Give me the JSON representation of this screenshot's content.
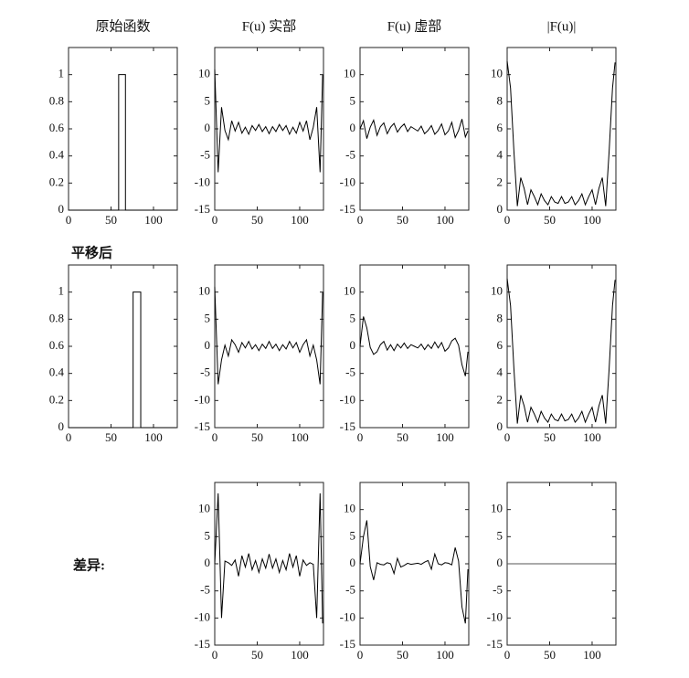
{
  "chart_data": [
    {
      "type": "line",
      "title": "原始函数",
      "x": [
        0,
        59,
        59,
        67,
        67,
        127
      ],
      "values": [
        0,
        0,
        1,
        1,
        0,
        0
      ],
      "color": "#000000",
      "xlim": [
        0,
        128
      ],
      "xticks": [
        0,
        50,
        100
      ],
      "ylim": [
        0,
        1.2
      ],
      "yticks": [
        0,
        0.2,
        0.4,
        0.6,
        0.8,
        1
      ]
    },
    {
      "type": "line",
      "title": "F(u) 实部",
      "x": [
        0,
        4,
        8,
        12,
        16,
        20,
        24,
        28,
        32,
        36,
        40,
        44,
        48,
        52,
        56,
        60,
        64,
        68,
        72,
        76,
        80,
        84,
        88,
        92,
        96,
        100,
        104,
        108,
        112,
        116,
        120,
        124,
        127
      ],
      "values": [
        11,
        -8,
        4,
        -0.3,
        -2,
        1.5,
        -0.4,
        1.2,
        -0.8,
        0.3,
        -1,
        0.6,
        -0.3,
        0.8,
        -0.5,
        0.4,
        -0.9,
        0.4,
        -0.5,
        0.8,
        -0.3,
        0.6,
        -1,
        0.3,
        -0.8,
        1.2,
        -0.4,
        1.5,
        -2,
        0.3,
        4,
        -8,
        10
      ],
      "color": "#000000",
      "xlim": [
        0,
        128
      ],
      "xticks": [
        0,
        50,
        100
      ],
      "ylim": [
        -15,
        15
      ],
      "yticks": [
        -15,
        -10,
        -5,
        0,
        5,
        10
      ]
    },
    {
      "type": "line",
      "title": "F(u) 虚部",
      "x": [
        0,
        4,
        8,
        12,
        16,
        20,
        24,
        28,
        32,
        36,
        40,
        44,
        48,
        52,
        56,
        60,
        64,
        68,
        72,
        76,
        80,
        84,
        88,
        92,
        96,
        100,
        104,
        108,
        112,
        116,
        120,
        124,
        127
      ],
      "values": [
        0,
        1.5,
        -1.8,
        0.3,
        1.6,
        -1.2,
        0.4,
        1.1,
        -0.9,
        0.3,
        1,
        -0.6,
        0.3,
        0.9,
        -0.5,
        0.4,
        0,
        -0.4,
        0.5,
        -0.9,
        -0.3,
        0.6,
        -1,
        -0.3,
        0.9,
        -1.1,
        -0.4,
        1.2,
        -1.6,
        -0.3,
        1.8,
        -1.5,
        -0.4
      ],
      "color": "#000000",
      "xlim": [
        0,
        128
      ],
      "xticks": [
        0,
        50,
        100
      ],
      "ylim": [
        -15,
        15
      ],
      "yticks": [
        -15,
        -10,
        -5,
        0,
        5,
        10
      ]
    },
    {
      "type": "line",
      "title": "|F(u)|",
      "x": [
        0,
        4,
        8,
        12,
        16,
        20,
        24,
        28,
        32,
        36,
        40,
        44,
        48,
        52,
        56,
        60,
        64,
        68,
        72,
        76,
        80,
        84,
        88,
        92,
        96,
        100,
        104,
        108,
        112,
        116,
        120,
        124,
        127
      ],
      "values": [
        11,
        9,
        4.3,
        0.3,
        2.4,
        1.6,
        0.4,
        1.5,
        1,
        0.4,
        1.2,
        0.7,
        0.4,
        1,
        0.6,
        0.5,
        1,
        0.5,
        0.6,
        1,
        0.4,
        0.7,
        1.2,
        0.4,
        1,
        1.5,
        0.4,
        1.6,
        2.4,
        0.3,
        4.3,
        9,
        10.9
      ],
      "color": "#000000",
      "xlim": [
        0,
        128
      ],
      "xticks": [
        0,
        50,
        100
      ],
      "ylim": [
        0,
        12
      ],
      "yticks": [
        0,
        2,
        4,
        6,
        8,
        10
      ]
    },
    {
      "type": "line",
      "x": [
        0,
        76,
        76,
        85,
        85,
        127
      ],
      "values": [
        0,
        0,
        1,
        1,
        0,
        0
      ],
      "color": "#000000",
      "xlim": [
        0,
        128
      ],
      "xticks": [
        0,
        50,
        100
      ],
      "ylim": [
        0,
        1.2
      ],
      "yticks": [
        0,
        0.2,
        0.4,
        0.6,
        0.8,
        1
      ]
    },
    {
      "type": "line",
      "x": [
        0,
        4,
        8,
        12,
        16,
        20,
        24,
        28,
        32,
        36,
        40,
        44,
        48,
        52,
        56,
        60,
        64,
        68,
        72,
        76,
        80,
        84,
        88,
        92,
        96,
        100,
        104,
        108,
        112,
        116,
        120,
        124,
        127
      ],
      "values": [
        11,
        -7,
        -2.5,
        0.2,
        -1.8,
        1.2,
        0.3,
        -1.1,
        0.7,
        -0.3,
        0.9,
        -0.5,
        0.3,
        -0.8,
        0.4,
        -0.4,
        0.9,
        -0.4,
        0.4,
        -0.8,
        0.3,
        -0.5,
        0.9,
        -0.3,
        0.7,
        -1.1,
        0.3,
        1.2,
        -1.8,
        0.2,
        -2.5,
        -7,
        10
      ],
      "color": "#000000",
      "xlim": [
        0,
        128
      ],
      "xticks": [
        0,
        50,
        100
      ],
      "ylim": [
        -15,
        15
      ],
      "yticks": [
        -15,
        -10,
        -5,
        0,
        5,
        10
      ]
    },
    {
      "type": "line",
      "x": [
        0,
        4,
        8,
        12,
        16,
        20,
        24,
        28,
        32,
        36,
        40,
        44,
        48,
        52,
        56,
        60,
        64,
        68,
        72,
        76,
        80,
        84,
        88,
        92,
        96,
        100,
        104,
        108,
        112,
        116,
        120,
        124,
        127
      ],
      "values": [
        0,
        5.5,
        3.4,
        -0.2,
        -1.5,
        -1,
        0.3,
        0.9,
        -0.7,
        0.3,
        -0.8,
        0.4,
        -0.3,
        0.6,
        -0.4,
        0.3,
        0,
        -0.3,
        0.4,
        -0.6,
        0.3,
        -0.4,
        0.8,
        -0.3,
        0.7,
        -0.9,
        -0.3,
        1,
        1.5,
        0.2,
        -3.4,
        -5.5,
        -1
      ],
      "color": "#000000",
      "xlim": [
        0,
        128
      ],
      "xticks": [
        0,
        50,
        100
      ],
      "ylim": [
        -15,
        15
      ],
      "yticks": [
        -15,
        -10,
        -5,
        0,
        5,
        10
      ]
    },
    {
      "type": "line",
      "x": [
        0,
        4,
        8,
        12,
        16,
        20,
        24,
        28,
        32,
        36,
        40,
        44,
        48,
        52,
        56,
        60,
        64,
        68,
        72,
        76,
        80,
        84,
        88,
        92,
        96,
        100,
        104,
        108,
        112,
        116,
        120,
        124,
        127
      ],
      "values": [
        11,
        9,
        4.3,
        0.3,
        2.4,
        1.6,
        0.4,
        1.5,
        1,
        0.4,
        1.2,
        0.7,
        0.4,
        1,
        0.6,
        0.5,
        1,
        0.5,
        0.6,
        1,
        0.4,
        0.7,
        1.2,
        0.4,
        1,
        1.5,
        0.4,
        1.6,
        2.4,
        0.3,
        4.3,
        9,
        10.9
      ],
      "color": "#000000",
      "xlim": [
        0,
        128
      ],
      "xticks": [
        0,
        50,
        100
      ],
      "ylim": [
        0,
        12
      ],
      "yticks": [
        0,
        2,
        4,
        6,
        8,
        10
      ]
    },
    {
      "type": "line",
      "x": [
        0,
        4,
        8,
        12,
        16,
        20,
        24,
        28,
        32,
        36,
        40,
        44,
        48,
        52,
        56,
        60,
        64,
        68,
        72,
        76,
        80,
        84,
        88,
        92,
        96,
        100,
        104,
        108,
        112,
        116,
        120,
        124,
        127
      ],
      "values": [
        0,
        13,
        -10,
        0.5,
        0.2,
        -0.3,
        0.7,
        -2.3,
        1.5,
        -0.6,
        1.9,
        -1.1,
        0.6,
        -1.6,
        0.9,
        -0.8,
        1.8,
        -0.8,
        0.9,
        -1.6,
        0.6,
        -1.1,
        1.9,
        -0.6,
        1.5,
        -2.3,
        0.7,
        -0.3,
        0.2,
        -0.1,
        -10,
        13,
        -11
      ],
      "color": "#000000",
      "xlim": [
        0,
        128
      ],
      "xticks": [
        0,
        50,
        100
      ],
      "ylim": [
        -15,
        15
      ],
      "yticks": [
        -15,
        -10,
        -5,
        0,
        5,
        10
      ]
    },
    {
      "type": "line",
      "x": [
        0,
        4,
        8,
        12,
        16,
        20,
        24,
        28,
        32,
        36,
        40,
        44,
        48,
        52,
        56,
        60,
        64,
        68,
        72,
        76,
        80,
        84,
        88,
        92,
        96,
        100,
        104,
        108,
        112,
        116,
        120,
        124,
        127
      ],
      "values": [
        0,
        5,
        8,
        -0.5,
        -3,
        0.2,
        -0.1,
        -0.2,
        0.2,
        0,
        -1.8,
        1,
        -0.6,
        -0.3,
        0.1,
        -0.1,
        0,
        0.1,
        -0.1,
        0.3,
        0.6,
        -1,
        1.8,
        0,
        -0.2,
        0.2,
        0.1,
        -0.2,
        3,
        0.5,
        -8,
        -11,
        -1
      ],
      "color": "#000000",
      "xlim": [
        0,
        128
      ],
      "xticks": [
        0,
        50,
        100
      ],
      "ylim": [
        -15,
        15
      ],
      "yticks": [
        -15,
        -10,
        -5,
        0,
        5,
        10
      ]
    },
    {
      "type": "line",
      "x": [
        0,
        127
      ],
      "values": [
        0,
        0
      ],
      "color": "#555555",
      "xlim": [
        0,
        128
      ],
      "xticks": [
        0,
        50,
        100
      ],
      "ylim": [
        -15,
        15
      ],
      "yticks": [
        -15,
        -10,
        -5,
        0,
        5,
        10
      ]
    }
  ],
  "row_labels": [
    "平移后",
    "差异:"
  ]
}
